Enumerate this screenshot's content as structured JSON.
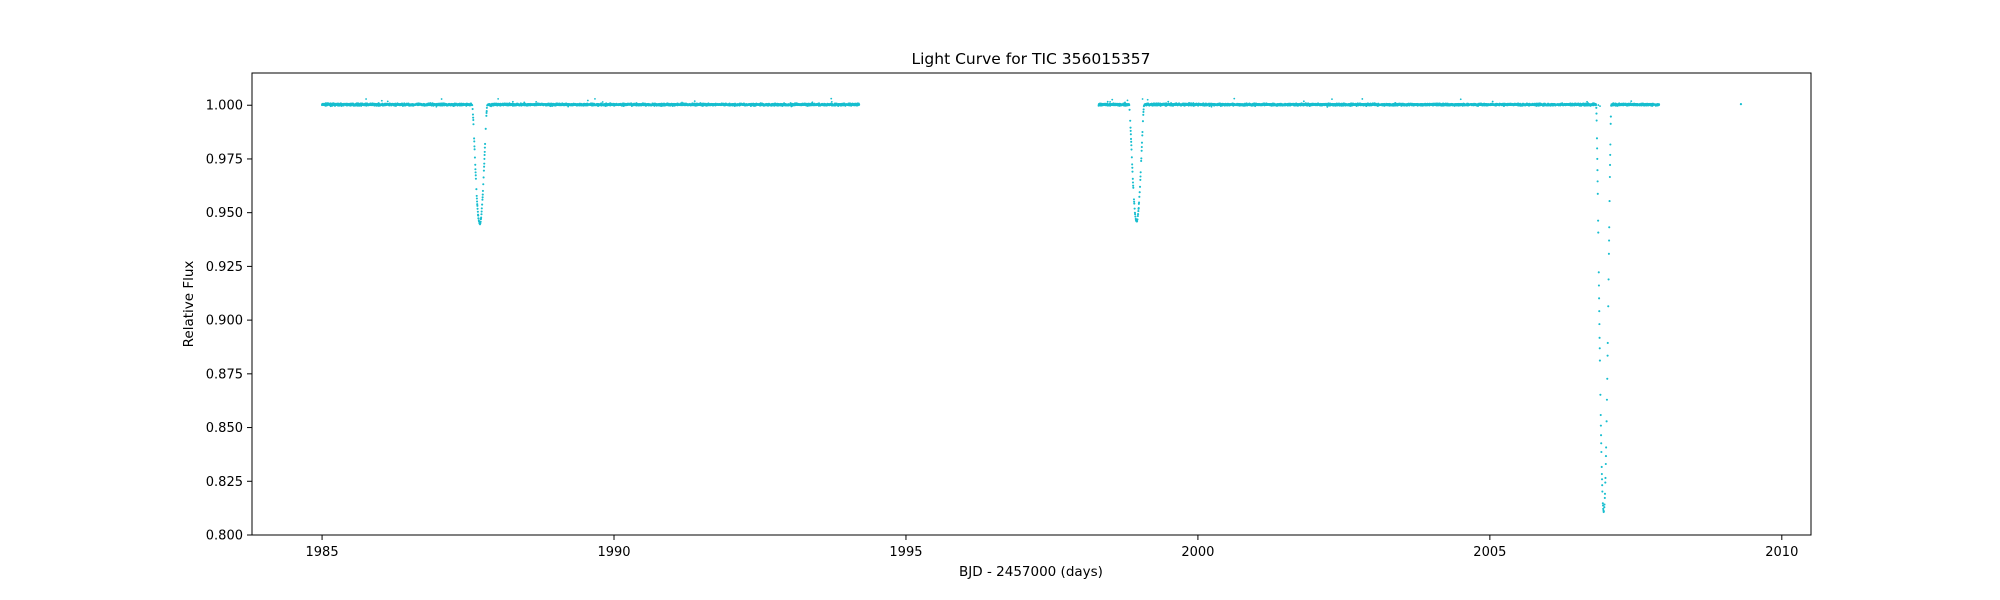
{
  "chart_data": {
    "type": "scatter",
    "title": "Light Curve for TIC 356015357",
    "xlabel": "BJD - 2457000 (days)",
    "ylabel": "Relative Flux",
    "xlim": [
      1983.8,
      2010.5
    ],
    "ylim": [
      0.8,
      1.015
    ],
    "xticks": [
      1985,
      1990,
      1995,
      2000,
      2005,
      2010
    ],
    "yticks": [
      0.8,
      0.825,
      0.85,
      0.875,
      0.9,
      0.925,
      0.95,
      0.975,
      1.0
    ],
    "ytick_labels": [
      "0.800",
      "0.825",
      "0.850",
      "0.875",
      "0.900",
      "0.925",
      "0.950",
      "0.975",
      "1.000"
    ],
    "grid": false,
    "marker_color": "#17becf",
    "segments": [
      {
        "start": 1985.0,
        "end": 1994.2,
        "baseline": 1.0003
      },
      {
        "start": 1998.3,
        "end": 2007.9,
        "baseline": 1.0003
      }
    ],
    "dips": [
      {
        "center": 1987.7,
        "min_flux": 0.945,
        "half_width": 0.13
      },
      {
        "center": 1998.95,
        "min_flux": 0.946,
        "half_width": 0.13
      },
      {
        "center": 2006.95,
        "min_flux": 0.811,
        "half_width": 0.13
      }
    ],
    "isolated_points": [
      {
        "x": 2009.3,
        "y": 1.0005
      }
    ]
  }
}
